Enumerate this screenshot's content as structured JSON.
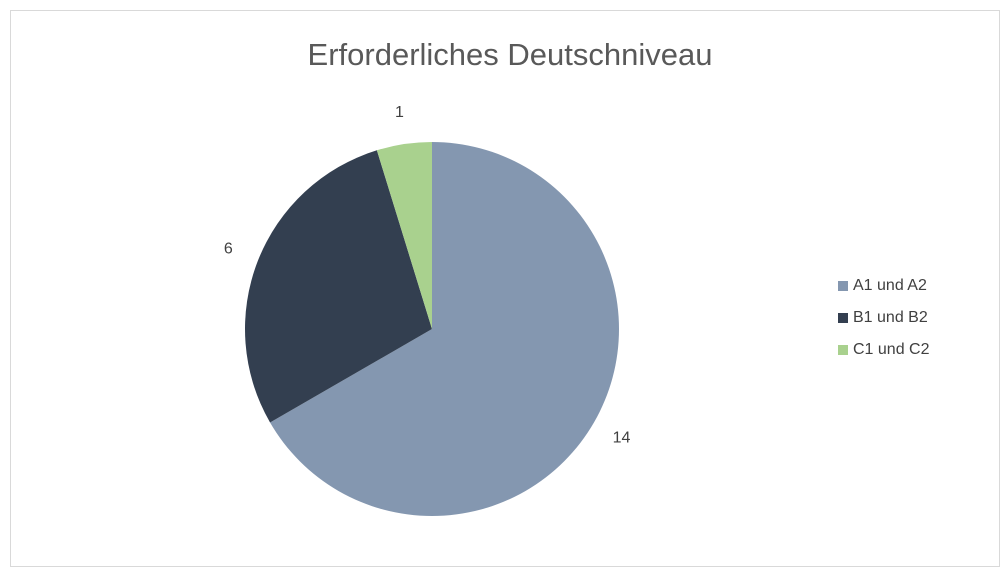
{
  "chart_data": {
    "type": "pie",
    "title": "Erforderliches Deutschniveau",
    "categories": [
      "A1 und A2",
      "B1 und B2",
      "C1 und C2"
    ],
    "values": [
      14,
      6,
      1
    ],
    "colors": [
      "#8497b0",
      "#333f50",
      "#a9d18e"
    ],
    "legend": "right"
  }
}
